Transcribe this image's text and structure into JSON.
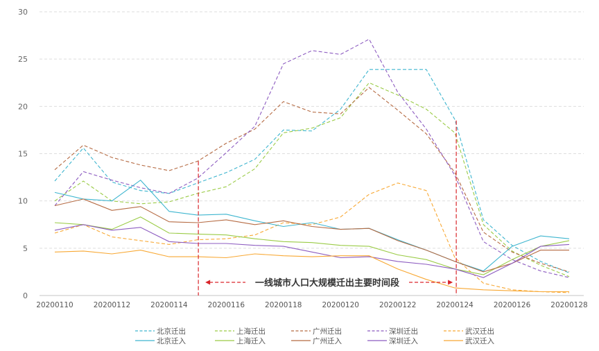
{
  "chart_data": {
    "type": "line",
    "title": "",
    "xlabel": "",
    "ylabel": "",
    "ylim": [
      0,
      30
    ],
    "yticks": [
      0,
      5,
      10,
      15,
      20,
      25,
      30
    ],
    "grid": true,
    "legend_position": "bottom",
    "x": [
      "20200110",
      "20200111",
      "20200112",
      "20200113",
      "20200114",
      "20200115",
      "20200116",
      "20200117",
      "20200118",
      "20200119",
      "20200120",
      "20200121",
      "20200122",
      "20200123",
      "20200124",
      "20200125",
      "20200126",
      "20200127",
      "20200128"
    ],
    "xtick_labels": [
      "20200110",
      "20200112",
      "20200114",
      "20200116",
      "20200118",
      "20200120",
      "20200122",
      "20200124",
      "20200126",
      "20200128"
    ],
    "series": [
      {
        "name": "北京迁出",
        "color": "#3db5cf",
        "dashed": true,
        "values": [
          12.1,
          15.6,
          12.0,
          11.1,
          10.8,
          11.9,
          13.0,
          14.4,
          17.5,
          17.4,
          19.7,
          23.9,
          23.9,
          23.9,
          18.6,
          8.0,
          5.3,
          3.6,
          2.4
        ]
      },
      {
        "name": "上海迁出",
        "color": "#9acb45",
        "dashed": true,
        "values": [
          10.0,
          12.1,
          10.0,
          9.7,
          9.9,
          10.8,
          11.5,
          13.4,
          17.2,
          17.7,
          18.8,
          22.5,
          21.2,
          19.7,
          17.2,
          7.5,
          4.7,
          3.2,
          2.0
        ]
      },
      {
        "name": "广州迁出",
        "color": "#b56a42",
        "dashed": true,
        "values": [
          13.3,
          15.9,
          14.6,
          13.8,
          13.2,
          14.2,
          16.1,
          17.6,
          20.5,
          19.4,
          19.2,
          22.0,
          19.6,
          17.1,
          13.0,
          6.7,
          4.6,
          3.4,
          2.5
        ]
      },
      {
        "name": "深圳迁出",
        "color": "#8c5bc0",
        "dashed": true,
        "values": [
          9.5,
          13.1,
          12.2,
          11.4,
          10.8,
          12.4,
          15.1,
          17.9,
          24.5,
          25.9,
          25.5,
          27.1,
          21.5,
          17.6,
          12.7,
          5.7,
          3.8,
          2.6,
          1.9
        ]
      },
      {
        "name": "武汉迁出",
        "color": "#f8a833",
        "dashed": true,
        "values": [
          6.6,
          7.5,
          6.2,
          5.8,
          5.4,
          5.9,
          6.0,
          6.4,
          7.7,
          7.5,
          8.3,
          10.7,
          11.9,
          11.1,
          4.0,
          1.3,
          0.6,
          0.4,
          0.3
        ]
      },
      {
        "name": "北京迁入",
        "color": "#3db5cf",
        "dashed": false,
        "values": [
          10.9,
          10.2,
          10.0,
          12.2,
          8.9,
          8.5,
          8.6,
          7.9,
          7.3,
          7.7,
          7.0,
          7.1,
          5.9,
          4.8,
          3.6,
          2.6,
          5.2,
          6.3,
          6.0
        ]
      },
      {
        "name": "上海迁入",
        "color": "#9acb45",
        "dashed": false,
        "values": [
          7.7,
          7.5,
          7.0,
          8.3,
          6.6,
          6.5,
          6.4,
          6.0,
          5.7,
          5.6,
          5.3,
          5.2,
          4.3,
          3.8,
          2.8,
          2.2,
          3.8,
          5.2,
          5.8
        ]
      },
      {
        "name": "广州迁入",
        "color": "#b56a42",
        "dashed": false,
        "values": [
          9.5,
          10.2,
          9.0,
          9.4,
          7.8,
          7.7,
          8.0,
          7.5,
          7.9,
          7.3,
          7.0,
          7.1,
          5.8,
          4.8,
          3.6,
          2.5,
          3.4,
          4.8,
          4.8
        ]
      },
      {
        "name": "深圳迁入",
        "color": "#8c5bc0",
        "dashed": false,
        "values": [
          6.9,
          7.5,
          6.9,
          7.2,
          5.7,
          5.5,
          5.5,
          5.3,
          5.2,
          4.6,
          4.0,
          4.1,
          3.6,
          3.3,
          2.8,
          1.9,
          3.4,
          5.2,
          5.4
        ]
      },
      {
        "name": "武汉迁入",
        "color": "#f8a833",
        "dashed": false,
        "values": [
          4.6,
          4.7,
          4.4,
          4.8,
          4.1,
          4.1,
          4.0,
          4.4,
          4.2,
          4.1,
          4.2,
          4.2,
          2.8,
          1.7,
          0.8,
          0.6,
          0.5,
          0.4,
          0.4
        ]
      }
    ],
    "annotation": {
      "text": "一线城市人口大规模迁出主要时间段",
      "start": "20200115",
      "end": "20200124",
      "color": "#d9252a"
    }
  }
}
